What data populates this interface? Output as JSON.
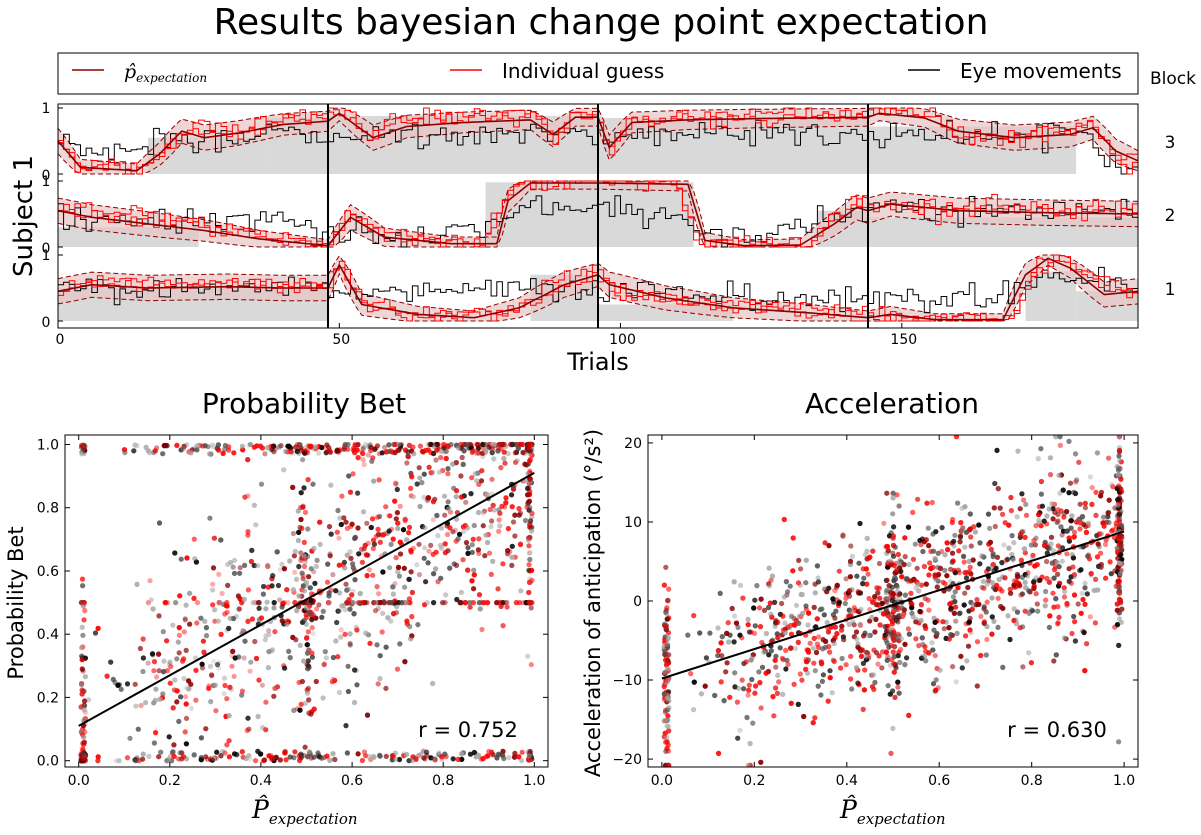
{
  "title": "Results bayesian change point expectation",
  "legend": {
    "items": [
      {
        "label_main": "p̂",
        "label_sub": "expectation",
        "color": "#8b0000"
      },
      {
        "label": "Individual guess",
        "color": "#ff0000"
      },
      {
        "label": "Eye movements",
        "color": "#000000"
      }
    ],
    "block_label": "Block"
  },
  "colors": {
    "expectation": "#8b0000",
    "guess": "#ff0000",
    "eye": "#000000",
    "band": "#d9d9d9",
    "ci_fill": "#e8c4c4"
  },
  "chart_data": [
    {
      "type": "line",
      "ylabel": "Subject 1",
      "xlabel": "Trials",
      "xlim": [
        0,
        192
      ],
      "xticks": [
        0,
        50,
        100,
        150
      ],
      "block_boundaries": [
        48,
        96,
        144
      ],
      "ytick_labels": [
        "0",
        "1"
      ],
      "blocks": [
        {
          "label": "3",
          "true_p": [
            [
              0,
              16,
              0.0
            ],
            [
              16,
              37,
              0.55
            ],
            [
              37,
              48,
              0.85
            ],
            [
              48,
              96,
              0.88
            ],
            [
              96,
              144,
              0.85
            ],
            [
              144,
              181,
              0.72
            ],
            [
              181,
              192,
              0.0
            ]
          ],
          "expectation": [
            [
              0,
              0.5
            ],
            [
              4,
              0.1
            ],
            [
              14,
              0.05
            ],
            [
              18,
              0.3
            ],
            [
              22,
              0.65
            ],
            [
              26,
              0.55
            ],
            [
              32,
              0.62
            ],
            [
              40,
              0.75
            ],
            [
              48,
              0.8
            ],
            [
              50,
              0.92
            ],
            [
              56,
              0.55
            ],
            [
              62,
              0.72
            ],
            [
              72,
              0.78
            ],
            [
              84,
              0.82
            ],
            [
              88,
              0.6
            ],
            [
              92,
              0.86
            ],
            [
              96,
              0.86
            ],
            [
              98,
              0.4
            ],
            [
              102,
              0.78
            ],
            [
              112,
              0.82
            ],
            [
              124,
              0.84
            ],
            [
              134,
              0.85
            ],
            [
              144,
              0.86
            ],
            [
              146,
              0.92
            ],
            [
              154,
              0.85
            ],
            [
              160,
              0.65
            ],
            [
              170,
              0.55
            ],
            [
              180,
              0.6
            ],
            [
              184,
              0.7
            ],
            [
              188,
              0.35
            ],
            [
              192,
              0.2
            ]
          ],
          "guess": [
            [
              0,
              0.5
            ],
            [
              4,
              0.1
            ],
            [
              16,
              0.1
            ],
            [
              20,
              0.4
            ],
            [
              24,
              0.7
            ],
            [
              30,
              0.6
            ],
            [
              40,
              0.8
            ],
            [
              48,
              0.85
            ],
            [
              50,
              0.95
            ],
            [
              56,
              0.5
            ],
            [
              60,
              0.8
            ],
            [
              72,
              0.85
            ],
            [
              86,
              0.85
            ],
            [
              88,
              0.5
            ],
            [
              92,
              0.9
            ],
            [
              96,
              0.9
            ],
            [
              98,
              0.3
            ],
            [
              102,
              0.8
            ],
            [
              120,
              0.85
            ],
            [
              144,
              0.85
            ],
            [
              146,
              0.95
            ],
            [
              156,
              0.85
            ],
            [
              160,
              0.6
            ],
            [
              170,
              0.5
            ],
            [
              180,
              0.65
            ],
            [
              184,
              0.75
            ],
            [
              188,
              0.25
            ],
            [
              192,
              0.1
            ]
          ],
          "eye": [
            [
              0,
              0.5
            ],
            [
              8,
              0.3
            ],
            [
              14,
              0.4
            ],
            [
              20,
              0.55
            ],
            [
              28,
              0.5
            ],
            [
              38,
              0.6
            ],
            [
              48,
              0.55
            ],
            [
              56,
              0.6
            ],
            [
              66,
              0.55
            ],
            [
              76,
              0.62
            ],
            [
              86,
              0.6
            ],
            [
              96,
              0.55
            ],
            [
              106,
              0.65
            ],
            [
              116,
              0.6
            ],
            [
              126,
              0.65
            ],
            [
              136,
              0.62
            ],
            [
              144,
              0.6
            ],
            [
              154,
              0.6
            ],
            [
              164,
              0.62
            ],
            [
              174,
              0.65
            ],
            [
              182,
              0.7
            ],
            [
              188,
              0.15
            ],
            [
              192,
              0.1
            ]
          ]
        },
        {
          "label": "2",
          "true_p": [
            [
              0,
              25,
              0.3
            ],
            [
              25,
              48,
              0.0
            ],
            [
              48,
              76,
              0.0
            ],
            [
              76,
              96,
              0.98
            ],
            [
              96,
              113,
              0.98
            ],
            [
              113,
              135,
              0.0
            ],
            [
              135,
              144,
              0.55
            ],
            [
              144,
              192,
              0.45
            ]
          ],
          "expectation": [
            [
              0,
              0.55
            ],
            [
              6,
              0.45
            ],
            [
              16,
              0.35
            ],
            [
              26,
              0.25
            ],
            [
              36,
              0.12
            ],
            [
              48,
              0.02
            ],
            [
              52,
              0.45
            ],
            [
              58,
              0.15
            ],
            [
              70,
              0.05
            ],
            [
              78,
              0.05
            ],
            [
              80,
              0.7
            ],
            [
              84,
              0.97
            ],
            [
              96,
              0.97
            ],
            [
              112,
              0.95
            ],
            [
              115,
              0.1
            ],
            [
              122,
              0.02
            ],
            [
              132,
              0.03
            ],
            [
              138,
              0.35
            ],
            [
              142,
              0.6
            ],
            [
              144,
              0.55
            ],
            [
              148,
              0.65
            ],
            [
              160,
              0.55
            ],
            [
              176,
              0.52
            ],
            [
              192,
              0.5
            ]
          ],
          "guess": [
            [
              0,
              0.55
            ],
            [
              6,
              0.5
            ],
            [
              18,
              0.4
            ],
            [
              30,
              0.25
            ],
            [
              40,
              0.1
            ],
            [
              48,
              0.0
            ],
            [
              52,
              0.5
            ],
            [
              60,
              0.1
            ],
            [
              76,
              0.0
            ],
            [
              78,
              0.5
            ],
            [
              82,
              0.95
            ],
            [
              96,
              1.0
            ],
            [
              110,
              1.0
            ],
            [
              114,
              0.05
            ],
            [
              134,
              0.0
            ],
            [
              138,
              0.5
            ],
            [
              142,
              0.65
            ],
            [
              148,
              0.6
            ],
            [
              170,
              0.55
            ],
            [
              192,
              0.52
            ]
          ],
          "eye": [
            [
              0,
              0.5
            ],
            [
              10,
              0.35
            ],
            [
              20,
              0.4
            ],
            [
              30,
              0.35
            ],
            [
              40,
              0.45
            ],
            [
              48,
              0.2
            ],
            [
              56,
              0.1
            ],
            [
              66,
              0.15
            ],
            [
              76,
              0.3
            ],
            [
              84,
              0.55
            ],
            [
              90,
              0.6
            ],
            [
              96,
              0.55
            ],
            [
              106,
              0.5
            ],
            [
              114,
              0.3
            ],
            [
              122,
              0.15
            ],
            [
              130,
              0.25
            ],
            [
              138,
              0.45
            ],
            [
              144,
              0.6
            ],
            [
              156,
              0.55
            ],
            [
              170,
              0.5
            ],
            [
              192,
              0.52
            ]
          ]
        },
        {
          "label": "1",
          "true_p": [
            [
              0,
              48,
              0.5
            ],
            [
              48,
              84,
              0.0
            ],
            [
              84,
              96,
              0.7
            ],
            [
              96,
              120,
              0.25
            ],
            [
              120,
              144,
              0.0
            ],
            [
              144,
              172,
              0.0
            ],
            [
              172,
              181,
              0.75
            ],
            [
              181,
              192,
              0.45
            ]
          ],
          "expectation": [
            [
              0,
              0.45
            ],
            [
              6,
              0.55
            ],
            [
              16,
              0.5
            ],
            [
              30,
              0.52
            ],
            [
              40,
              0.5
            ],
            [
              48,
              0.5
            ],
            [
              50,
              0.85
            ],
            [
              54,
              0.25
            ],
            [
              64,
              0.1
            ],
            [
              74,
              0.05
            ],
            [
              82,
              0.2
            ],
            [
              90,
              0.55
            ],
            [
              96,
              0.7
            ],
            [
              98,
              0.55
            ],
            [
              108,
              0.35
            ],
            [
              120,
              0.2
            ],
            [
              134,
              0.12
            ],
            [
              144,
              0.05
            ],
            [
              148,
              0.1
            ],
            [
              156,
              0.02
            ],
            [
              168,
              0.02
            ],
            [
              172,
              0.7
            ],
            [
              176,
              0.95
            ],
            [
              180,
              0.8
            ],
            [
              186,
              0.4
            ],
            [
              192,
              0.45
            ]
          ],
          "guess": [
            [
              0,
              0.45
            ],
            [
              8,
              0.55
            ],
            [
              20,
              0.5
            ],
            [
              34,
              0.55
            ],
            [
              48,
              0.5
            ],
            [
              50,
              0.9
            ],
            [
              54,
              0.3
            ],
            [
              64,
              0.05
            ],
            [
              80,
              0.1
            ],
            [
              88,
              0.5
            ],
            [
              96,
              0.75
            ],
            [
              100,
              0.4
            ],
            [
              112,
              0.25
            ],
            [
              124,
              0.15
            ],
            [
              140,
              0.1
            ],
            [
              144,
              0.05
            ],
            [
              152,
              0.0
            ],
            [
              170,
              0.0
            ],
            [
              174,
              0.8
            ],
            [
              178,
              0.95
            ],
            [
              184,
              0.6
            ],
            [
              192,
              0.4
            ]
          ],
          "eye": [
            [
              0,
              0.5
            ],
            [
              10,
              0.45
            ],
            [
              20,
              0.55
            ],
            [
              30,
              0.5
            ],
            [
              40,
              0.55
            ],
            [
              48,
              0.5
            ],
            [
              56,
              0.45
            ],
            [
              66,
              0.4
            ],
            [
              76,
              0.45
            ],
            [
              86,
              0.55
            ],
            [
              96,
              0.5
            ],
            [
              104,
              0.45
            ],
            [
              114,
              0.4
            ],
            [
              124,
              0.35
            ],
            [
              134,
              0.3
            ],
            [
              144,
              0.35
            ],
            [
              152,
              0.3
            ],
            [
              164,
              0.4
            ],
            [
              174,
              0.55
            ],
            [
              182,
              0.65
            ],
            [
              192,
              0.5
            ]
          ]
        }
      ]
    },
    {
      "type": "scatter",
      "title": "Probability Bet",
      "xlabel_main": "P̂",
      "xlabel_sub": "expectation",
      "ylabel": "Probability Bet",
      "xlim": [
        -0.03,
        1.03
      ],
      "ylim": [
        -0.02,
        1.03
      ],
      "xticks": [
        0.0,
        0.2,
        0.4,
        0.6,
        0.8,
        1.0
      ],
      "xtick_labels": [
        "0.0",
        "0.2",
        "0.4",
        "0.6",
        "0.8",
        "1.0"
      ],
      "yticks": [
        0.0,
        0.2,
        0.4,
        0.6,
        0.8,
        1.0
      ],
      "ytick_labels": [
        "0.0",
        "0.2",
        "0.4",
        "0.6",
        "0.8",
        "1.0"
      ],
      "fit_line": [
        [
          0.0,
          0.11
        ],
        [
          1.0,
          0.91
        ]
      ],
      "annotation": "r = 0.752",
      "point_count": 3600
    },
    {
      "type": "scatter",
      "title": "Acceleration",
      "xlabel_main": "P̂",
      "xlabel_sub": "expectation",
      "ylabel": "Acceleration of anticipation (°/s²)",
      "xlim": [
        -0.03,
        1.03
      ],
      "ylim": [
        -21,
        21
      ],
      "xticks": [
        0.0,
        0.2,
        0.4,
        0.6,
        0.8,
        1.0
      ],
      "xtick_labels": [
        "0.0",
        "0.2",
        "0.4",
        "0.6",
        "0.8",
        "1.0"
      ],
      "yticks": [
        -20,
        -10,
        0,
        10,
        20
      ],
      "ytick_labels": [
        "−20",
        "−10",
        "0",
        "10",
        "20"
      ],
      "fit_line": [
        [
          0.0,
          -9.8
        ],
        [
          1.0,
          8.8
        ]
      ],
      "annotation": "r = 0.630",
      "point_count": 3600
    }
  ]
}
